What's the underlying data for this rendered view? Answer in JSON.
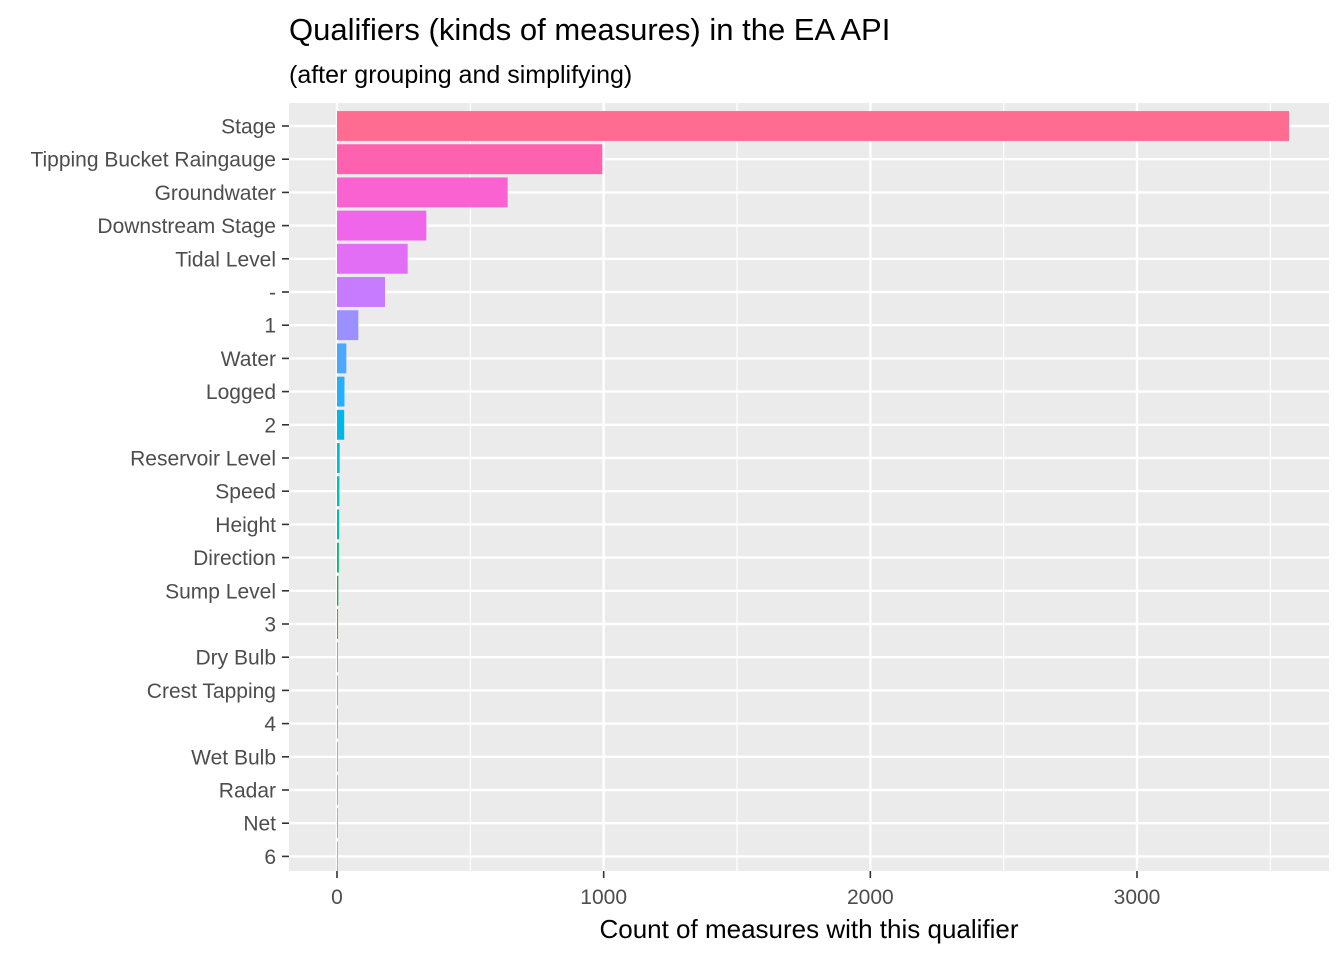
{
  "chart_data": {
    "type": "bar",
    "orientation": "horizontal",
    "title": "Qualifiers (kinds of measures) in the EA API",
    "subtitle": "(after grouping and simplifying)",
    "xlabel": "Count of measures with this qualifier",
    "ylabel": "",
    "xlim": [
      -180,
      3720
    ],
    "x_ticks": [
      0,
      1000,
      2000,
      3000
    ],
    "grid": true,
    "legend": "none",
    "categories": [
      "Stage",
      "Tipping Bucket Raingauge",
      "Groundwater",
      "Downstream Stage",
      "Tidal Level",
      "-",
      "1",
      "Water",
      "Logged",
      "2",
      "Reservoir Level",
      "Speed",
      "Height",
      "Direction",
      "Sump Level",
      "3",
      "Dry Bulb",
      "Crest Tapping",
      "4",
      "Wet Bulb",
      "Radar",
      "Net",
      "6"
    ],
    "values": [
      3570,
      995,
      640,
      335,
      265,
      180,
      80,
      35,
      28,
      27,
      10,
      9,
      8,
      7,
      5,
      4,
      3,
      3,
      2,
      1,
      1,
      1,
      1
    ],
    "colors": [
      "#FF6C91",
      "#FE61AE",
      "#FA62D2",
      "#F066EA",
      "#E36EF6",
      "#C77CFF",
      "#9C8FFF",
      "#4EA7FF",
      "#26AFFF",
      "#00B8E5",
      "#00BCD8",
      "#00C0B8",
      "#00C1A3",
      "#00BE70",
      "#00BA38",
      "#5BB300",
      "#7CAE00",
      "#99A800",
      "#B0A000",
      "#C49A00",
      "#D89000",
      "#E7861B",
      "#F8766D"
    ]
  }
}
